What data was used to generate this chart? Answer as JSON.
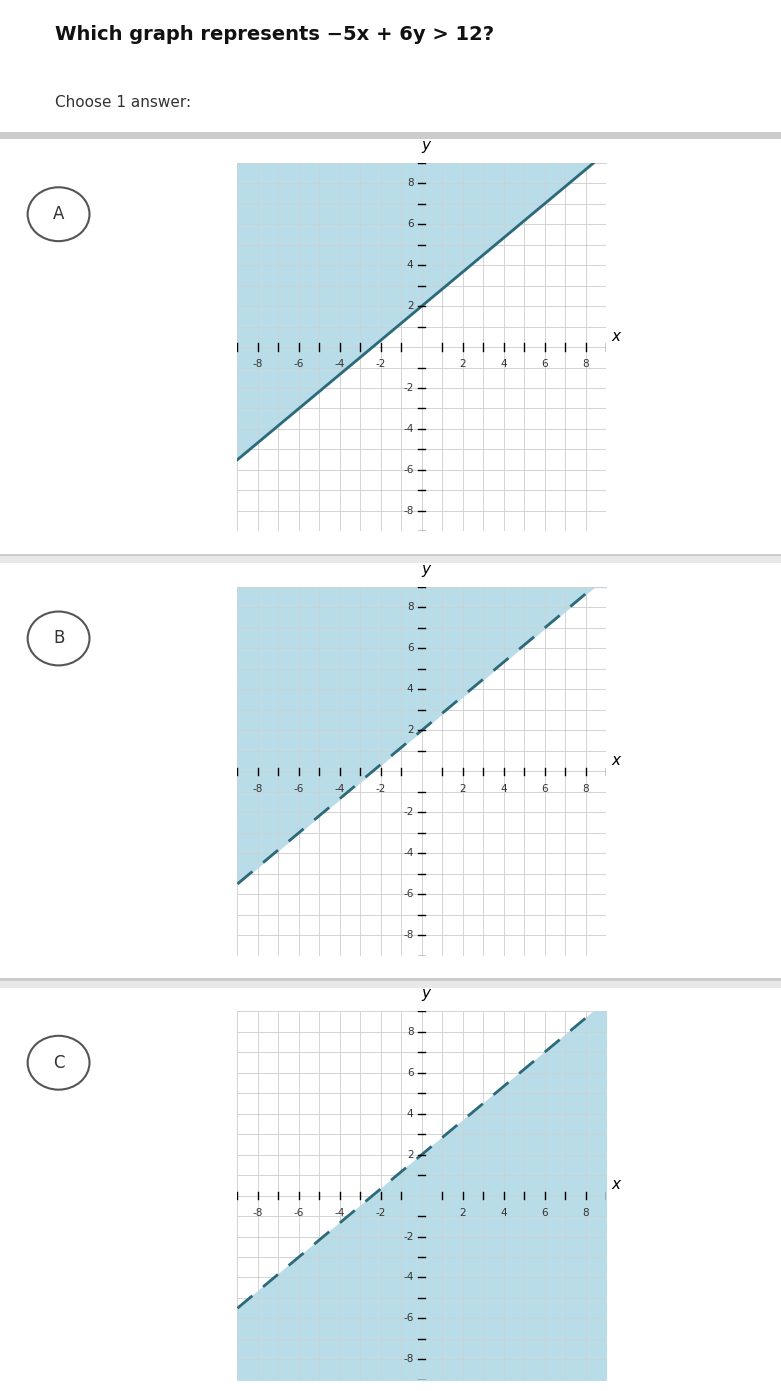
{
  "title": "Which graph represents −5x + 6y > 12?",
  "subtitle": "Choose 1 answer:",
  "graphs": [
    {
      "label": "A",
      "slope": 0.8333,
      "intercept": 2.0,
      "line_style": "solid",
      "shade_above": true,
      "shade_color": "#b8dce8",
      "line_color": "#2a6a7a",
      "selected": true
    },
    {
      "label": "B",
      "slope": 0.8333,
      "intercept": 2.0,
      "line_style": "dashed",
      "shade_above": true,
      "shade_color": "#b8dce8",
      "line_color": "#2a6a7a",
      "selected": false
    },
    {
      "label": "C",
      "slope": 0.8333,
      "intercept": 2.0,
      "line_style": "dashed",
      "shade_above": false,
      "shade_color": "#b8dce8",
      "line_color": "#2a6a7a",
      "selected": true
    }
  ],
  "xlim": [
    -9,
    9
  ],
  "ylim": [
    -9,
    9
  ],
  "xticks": [
    -8,
    -6,
    -4,
    -2,
    2,
    4,
    6,
    8
  ],
  "yticks": [
    -8,
    -6,
    -4,
    -2,
    2,
    4,
    6,
    8
  ],
  "bg_color": "#e8e8e8",
  "panel_bg": "#ffffff",
  "grid_color": "#b0b0b0",
  "grid_color_light": "#d0d0d0"
}
